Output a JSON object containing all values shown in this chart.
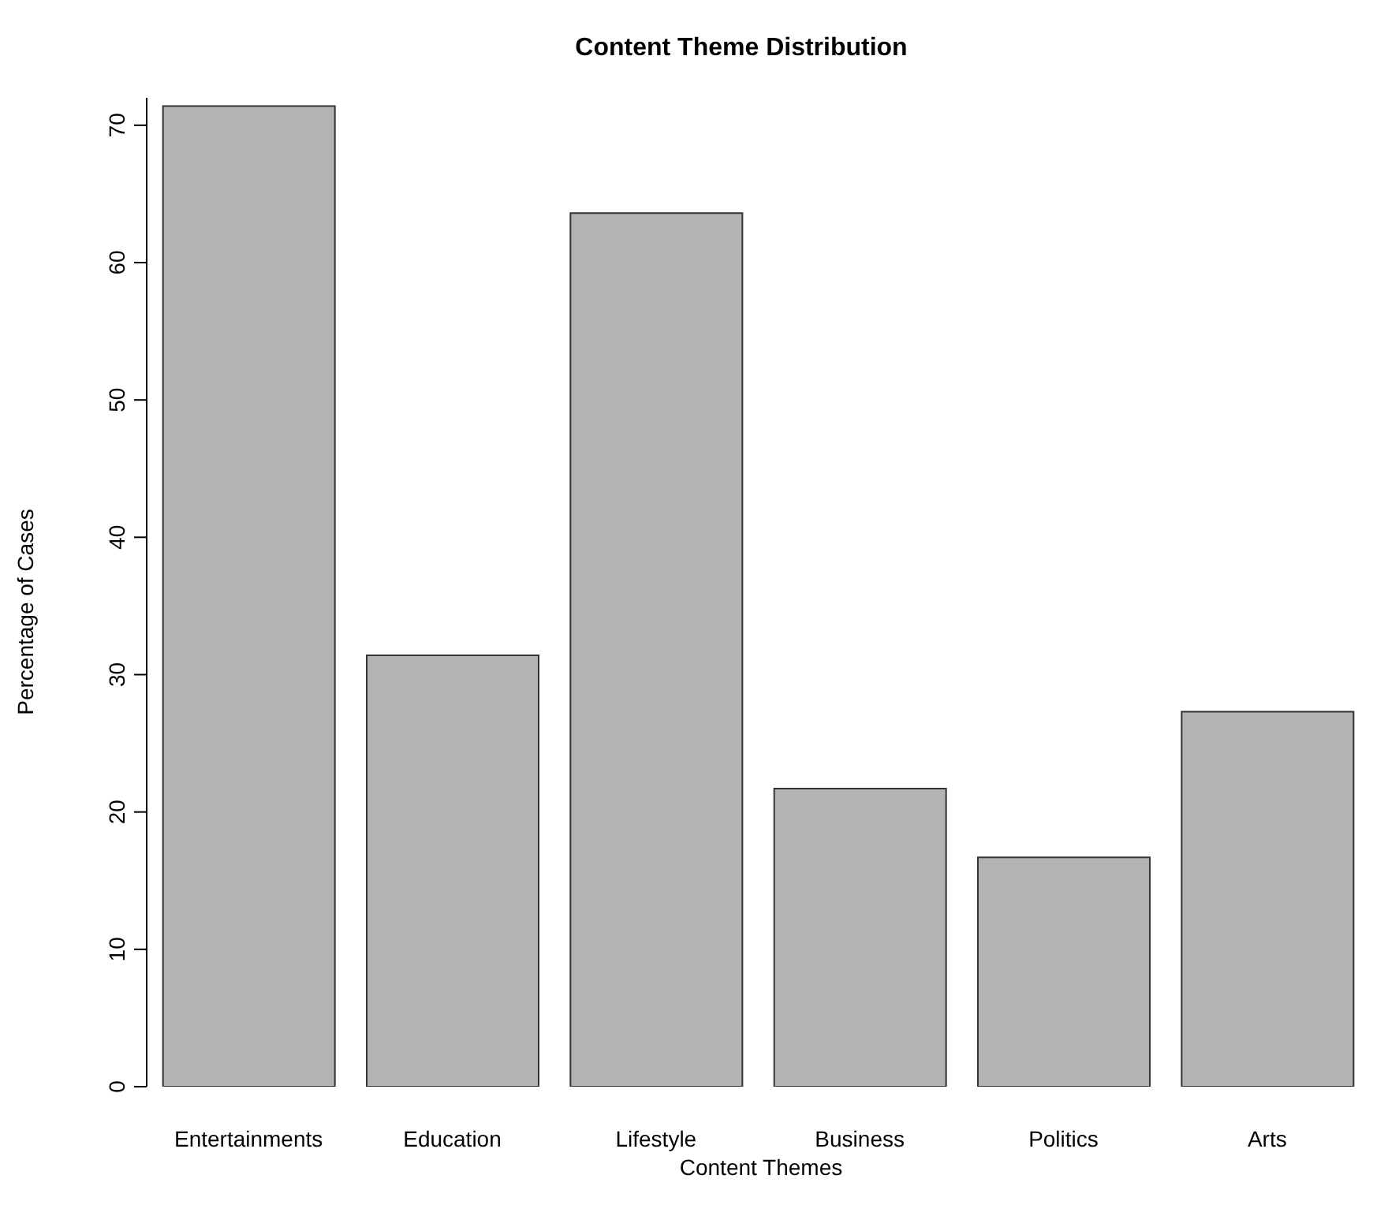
{
  "chart_data": {
    "type": "bar",
    "title": "Content Theme Distribution",
    "xlabel": "Content Themes",
    "ylabel": "Percentage of Cases",
    "categories": [
      "Entertainments",
      "Education",
      "Lifestyle",
      "Business",
      "Politics",
      "Arts"
    ],
    "values": [
      71.4,
      31.4,
      63.6,
      21.7,
      16.7,
      27.3
    ],
    "color": "#b3b3b3",
    "ylim": [
      0,
      72
    ],
    "yticks": [
      0,
      10,
      20,
      30,
      40,
      50,
      60,
      70
    ],
    "grid": false
  }
}
